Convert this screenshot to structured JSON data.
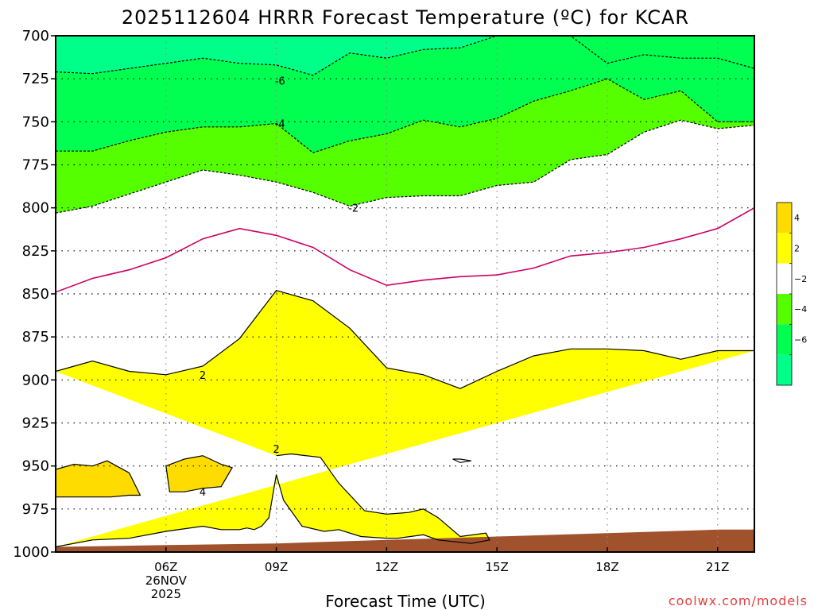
{
  "chart_data": {
    "type": "contour",
    "title": "2025112604 HRRR Forecast Temperature (ºC) for KCAR",
    "xlabel": "Forecast Time (UTC)",
    "ylabel": "",
    "credit": "coolwx.com/models",
    "y_axis": {
      "unit": "hPa",
      "range": [
        1000,
        700
      ],
      "ticks": [
        700,
        725,
        750,
        775,
        800,
        825,
        850,
        875,
        900,
        925,
        950,
        975,
        1000
      ]
    },
    "x_axis": {
      "range_hours": [
        3,
        22
      ],
      "ticks": [
        {
          "hour": 6,
          "label": "06Z",
          "sub1": "26NOV",
          "sub2": "2025"
        },
        {
          "hour": 9,
          "label": "09Z"
        },
        {
          "hour": 12,
          "label": "12Z"
        },
        {
          "hour": 15,
          "label": "15Z"
        },
        {
          "hour": 18,
          "label": "18Z"
        },
        {
          "hour": 21,
          "label": "21Z"
        }
      ]
    },
    "grid": true,
    "legend": {
      "position": "right",
      "bins": [
        {
          "color": "#ffdc00"
        },
        {
          "color": "#ffff00"
        },
        {
          "color": "#ffffff"
        },
        {
          "color": "#55ff00"
        },
        {
          "color": "#00ff50"
        },
        {
          "color": "#00ff88"
        }
      ],
      "labels": [
        "4",
        "2",
        "−2",
        "−4",
        "−6"
      ]
    },
    "contour_labels": [
      {
        "text": "-6",
        "hour": 9.1,
        "p": 726
      },
      {
        "text": "-4",
        "hour": 9.1,
        "p": 751
      },
      {
        "text": "-2",
        "hour": 11.1,
        "p": 800
      },
      {
        "text": "2",
        "hour": 7.0,
        "p": 897
      },
      {
        "text": "2",
        "hour": 9.0,
        "p": 940
      },
      {
        "text": "4",
        "hour": 7.0,
        "p": 965
      }
    ],
    "series": [
      {
        "level": -6,
        "style": "dashed",
        "hour": [
          3,
          4,
          5,
          6,
          7,
          8,
          9,
          10,
          11,
          12,
          13,
          14,
          15
        ],
        "p": [
          721,
          722,
          719,
          716,
          713,
          716,
          717,
          723,
          710,
          713,
          708,
          707,
          700
        ]
      },
      {
        "level": -6,
        "style": "dashed",
        "hour": [
          15,
          16,
          17,
          18,
          19,
          20,
          21,
          22
        ],
        "p": [
          700,
          700,
          700,
          716,
          711,
          713,
          713,
          719
        ]
      },
      {
        "level": -4,
        "style": "dashed",
        "hour": [
          3,
          4,
          5,
          6,
          7,
          8,
          9,
          10,
          11,
          12,
          13,
          14,
          15,
          16,
          17,
          18,
          19,
          20,
          21,
          22
        ],
        "p": [
          767,
          767,
          761,
          756,
          753,
          753,
          751,
          768,
          761,
          757,
          749,
          753,
          748,
          738,
          732,
          725,
          737,
          732,
          750,
          750
        ]
      },
      {
        "level": -2,
        "style": "dashed",
        "hour": [
          3,
          4,
          5,
          6,
          7,
          8,
          9,
          10,
          11,
          12,
          13,
          14,
          15,
          16,
          17,
          18,
          19,
          20,
          21,
          22
        ],
        "p": [
          803,
          799,
          792,
          785,
          778,
          781,
          785,
          791,
          799,
          794,
          793,
          793,
          787,
          785,
          772,
          769,
          756,
          749,
          754,
          752
        ]
      },
      {
        "level": 0,
        "style": "solid",
        "hour": [
          3,
          4,
          5,
          6,
          7,
          8,
          9,
          10,
          11,
          12,
          13,
          14,
          15,
          16,
          17,
          18,
          19,
          20,
          21,
          22
        ],
        "p": [
          849,
          841,
          836,
          829,
          818,
          812,
          816,
          823,
          836,
          845,
          842,
          840,
          839,
          835,
          828,
          826,
          823,
          818,
          812,
          800
        ]
      },
      {
        "level": 2,
        "style": "solid",
        "hour": [
          3,
          4,
          5,
          6,
          7,
          8,
          9,
          10,
          11,
          12,
          13,
          14,
          15,
          16,
          17,
          18,
          19,
          20,
          21,
          22
        ],
        "p": [
          895,
          889,
          895,
          897,
          892,
          876,
          848,
          854,
          870,
          893,
          897,
          905,
          895,
          886,
          882,
          882,
          883,
          888,
          883,
          883
        ]
      },
      {
        "level": 2,
        "style": "solid",
        "hour": [
          9.0,
          9.4,
          10.2,
          10.7,
          11.4,
          12.0,
          12.6,
          13.0,
          13.4,
          14.0,
          14.7,
          14.8,
          14.3,
          13.4,
          13.0,
          12.3,
          12.0,
          11.3,
          10.7,
          10.3,
          9.7,
          9.2,
          9.0,
          8.8,
          8.6,
          8.4,
          8.2,
          8.0,
          7.5,
          7.0,
          6.0,
          5.0,
          4.0,
          3.0
        ],
        "p": [
          944,
          943,
          945,
          960,
          976,
          978,
          977,
          975,
          980,
          991,
          989,
          993,
          995,
          993,
          990,
          992,
          992,
          991,
          987,
          988,
          985,
          970,
          955,
          980,
          985,
          987,
          986,
          987,
          987,
          985,
          988,
          992,
          993,
          997
        ]
      },
      {
        "level": 4,
        "style": "solid",
        "hour": [
          3.0,
          3.5,
          4.0,
          4.4,
          5.0,
          5.3,
          5.0,
          4.5,
          4.0,
          3.5,
          3.0
        ],
        "p": [
          952,
          949,
          950,
          947,
          954,
          967,
          967,
          968,
          968,
          968,
          968
        ]
      },
      {
        "level": 4,
        "style": "solid",
        "hour": [
          6.0,
          6.5,
          7.0,
          7.5,
          7.8,
          7.5,
          7.0,
          6.5,
          6.1,
          6.0
        ],
        "p": [
          950,
          946,
          944,
          949,
          951,
          962,
          963,
          965,
          965,
          950
        ]
      },
      {
        "level": 2,
        "style": "solid",
        "hour": [
          13.8,
          14.0,
          14.3,
          14.0,
          13.8
        ],
        "p": [
          946,
          946,
          947,
          948,
          946
        ]
      }
    ],
    "regions": [
      {
        "temp_range": "< -6",
        "color": "#00ff88"
      },
      {
        "temp_range": "-6 to -4",
        "color": "#00ff50"
      },
      {
        "temp_range": "-4 to -2",
        "color": "#55ff00"
      },
      {
        "temp_range": "-2 to 2",
        "color": "#ffffff"
      },
      {
        "temp_range": "2 to 4",
        "color": "#ffff00"
      },
      {
        "temp_range": "> 4",
        "color": "#ffdc00"
      },
      {
        "temp_range": "below ground",
        "color": "#a0522d"
      }
    ],
    "terrain": {
      "hour": [
        3,
        6,
        9,
        12,
        15,
        18,
        21,
        22
      ],
      "p": [
        997,
        996,
        995,
        993,
        991,
        989,
        987,
        987
      ]
    }
  }
}
